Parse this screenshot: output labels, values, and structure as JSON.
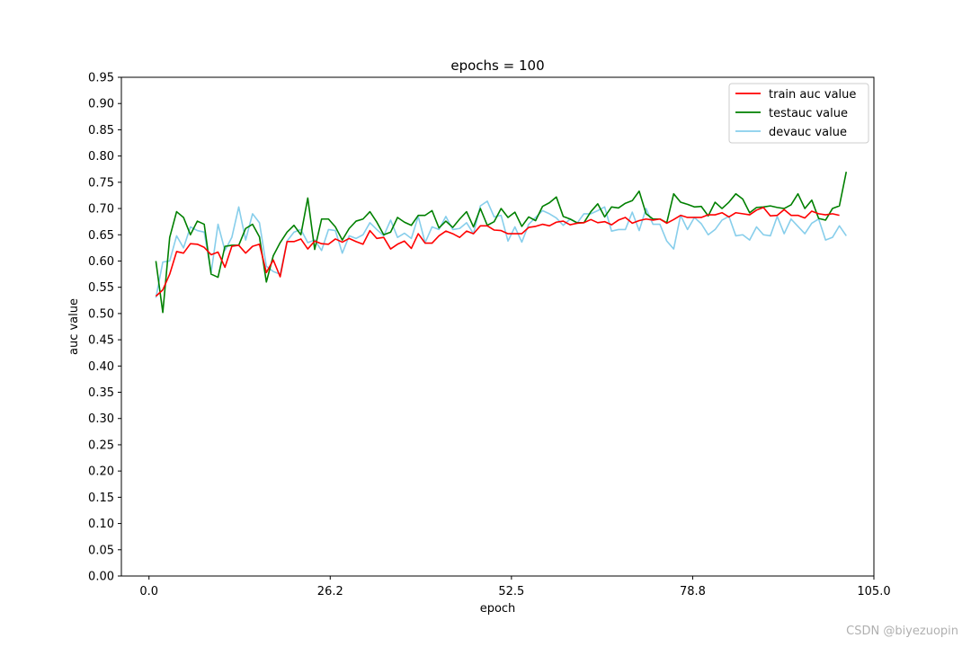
{
  "chart_data": {
    "type": "line",
    "title": "epochs = 100",
    "xlabel": "epoch",
    "ylabel": "auc value",
    "xlim": [
      -4.0,
      105.0
    ],
    "ylim": [
      0.0,
      0.95
    ],
    "xticks": [
      "0.0",
      "26.2",
      "52.5",
      "78.8",
      "105.0"
    ],
    "xtick_values": [
      0.0,
      26.25,
      52.5,
      78.75,
      105.0
    ],
    "yticks": [
      "0.00",
      "0.05",
      "0.10",
      "0.15",
      "0.20",
      "0.25",
      "0.30",
      "0.35",
      "0.40",
      "0.45",
      "0.50",
      "0.55",
      "0.60",
      "0.65",
      "0.70",
      "0.75",
      "0.80",
      "0.85",
      "0.90",
      "0.95"
    ],
    "ytick_values": [
      0.0,
      0.05,
      0.1,
      0.15,
      0.2,
      0.25,
      0.3,
      0.35,
      0.4,
      0.45,
      0.5,
      0.55,
      0.6,
      0.65,
      0.7,
      0.75,
      0.8,
      0.85,
      0.9,
      0.95
    ],
    "grid": false,
    "legend_position": "top-right",
    "series": [
      {
        "name": "train auc value",
        "color": "#ff0000",
        "values": [
          0.533,
          0.545,
          0.575,
          0.618,
          0.615,
          0.633,
          0.632,
          0.626,
          0.612,
          0.617,
          0.588,
          0.628,
          0.63,
          0.615,
          0.628,
          0.632,
          0.578,
          0.602,
          0.57,
          0.637,
          0.637,
          0.642,
          0.623,
          0.638,
          0.633,
          0.632,
          0.642,
          0.636,
          0.643,
          0.637,
          0.632,
          0.658,
          0.643,
          0.645,
          0.623,
          0.632,
          0.638,
          0.624,
          0.652,
          0.634,
          0.634,
          0.648,
          0.657,
          0.652,
          0.645,
          0.657,
          0.652,
          0.667,
          0.667,
          0.659,
          0.658,
          0.652,
          0.652,
          0.652,
          0.664,
          0.666,
          0.67,
          0.667,
          0.674,
          0.676,
          0.669,
          0.672,
          0.673,
          0.679,
          0.673,
          0.675,
          0.669,
          0.678,
          0.683,
          0.672,
          0.677,
          0.68,
          0.678,
          0.68,
          0.672,
          0.679,
          0.687,
          0.683,
          0.683,
          0.683,
          0.688,
          0.688,
          0.692,
          0.684,
          0.692,
          0.69,
          0.688,
          0.697,
          0.702,
          0.686,
          0.687,
          0.698,
          0.687,
          0.687,
          0.682,
          0.695,
          0.69,
          0.688,
          0.69,
          0.687
        ]
      },
      {
        "name": "testauc value",
        "color": "#008000",
        "values": [
          0.6,
          0.502,
          0.645,
          0.694,
          0.683,
          0.65,
          0.676,
          0.67,
          0.575,
          0.569,
          0.628,
          0.63,
          0.63,
          0.662,
          0.67,
          0.646,
          0.56,
          0.61,
          0.635,
          0.655,
          0.668,
          0.65,
          0.72,
          0.622,
          0.68,
          0.68,
          0.665,
          0.64,
          0.662,
          0.676,
          0.68,
          0.694,
          0.674,
          0.65,
          0.655,
          0.683,
          0.674,
          0.668,
          0.687,
          0.687,
          0.696,
          0.663,
          0.676,
          0.664,
          0.68,
          0.694,
          0.665,
          0.7,
          0.668,
          0.675,
          0.7,
          0.683,
          0.693,
          0.666,
          0.684,
          0.677,
          0.704,
          0.711,
          0.722,
          0.685,
          0.68,
          0.673,
          0.673,
          0.694,
          0.709,
          0.684,
          0.703,
          0.701,
          0.71,
          0.715,
          0.733,
          0.69,
          0.68,
          0.68,
          0.673,
          0.728,
          0.712,
          0.708,
          0.703,
          0.704,
          0.686,
          0.712,
          0.7,
          0.712,
          0.728,
          0.718,
          0.692,
          0.702,
          0.703,
          0.705,
          0.702,
          0.7,
          0.707,
          0.728,
          0.7,
          0.716,
          0.681,
          0.678,
          0.7,
          0.705,
          0.77
        ]
      },
      {
        "name": "devauc value",
        "color": "#87ceeb",
        "values": [
          0.53,
          0.598,
          0.6,
          0.648,
          0.625,
          0.665,
          0.658,
          0.655,
          0.578,
          0.67,
          0.62,
          0.645,
          0.703,
          0.64,
          0.69,
          0.673,
          0.59,
          0.58,
          0.575,
          0.638,
          0.655,
          0.66,
          0.635,
          0.64,
          0.62,
          0.66,
          0.658,
          0.615,
          0.648,
          0.643,
          0.65,
          0.673,
          0.66,
          0.648,
          0.678,
          0.645,
          0.653,
          0.643,
          0.685,
          0.635,
          0.665,
          0.66,
          0.685,
          0.66,
          0.662,
          0.673,
          0.652,
          0.705,
          0.714,
          0.684,
          0.687,
          0.638,
          0.665,
          0.636,
          0.67,
          0.683,
          0.696,
          0.69,
          0.682,
          0.668,
          0.68,
          0.672,
          0.69,
          0.69,
          0.696,
          0.703,
          0.657,
          0.66,
          0.66,
          0.693,
          0.658,
          0.7,
          0.67,
          0.67,
          0.638,
          0.623,
          0.687,
          0.66,
          0.683,
          0.671,
          0.65,
          0.66,
          0.678,
          0.685,
          0.648,
          0.65,
          0.64,
          0.665,
          0.65,
          0.648,
          0.685,
          0.652,
          0.68,
          0.666,
          0.652,
          0.672,
          0.68,
          0.64,
          0.645,
          0.667,
          0.648
        ]
      }
    ]
  },
  "watermark": "CSDN @biyezuopin"
}
